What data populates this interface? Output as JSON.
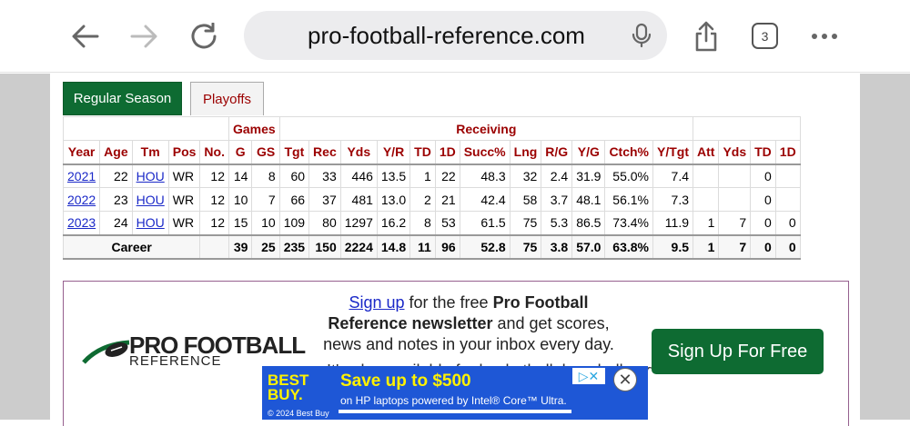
{
  "browser": {
    "url": "pro-football-reference.com",
    "tab_count": "3"
  },
  "tabs": {
    "regular": "Regular Season",
    "playoffs": "Playoffs"
  },
  "table": {
    "group_games": "Games",
    "group_receiving": "Receiving",
    "headers": [
      "Year",
      "Age",
      "Tm",
      "Pos",
      "No.",
      "G",
      "GS",
      "Tgt",
      "Rec",
      "Yds",
      "Y/R",
      "TD",
      "1D",
      "Succ%",
      "Lng",
      "R/G",
      "Y/G",
      "Ctch%",
      "Y/Tgt",
      "Att",
      "Yds",
      "TD",
      "1D"
    ],
    "rows": [
      [
        "2021",
        "22",
        "HOU",
        "WR",
        "12",
        "14",
        "8",
        "60",
        "33",
        "446",
        "13.5",
        "1",
        "22",
        "48.3",
        "32",
        "2.4",
        "31.9",
        "55.0%",
        "7.4",
        "",
        "",
        "0",
        ""
      ],
      [
        "2022",
        "23",
        "HOU",
        "WR",
        "12",
        "10",
        "7",
        "66",
        "37",
        "481",
        "13.0",
        "2",
        "21",
        "42.4",
        "58",
        "3.7",
        "48.1",
        "56.1%",
        "7.3",
        "",
        "",
        "0",
        ""
      ],
      [
        "2023",
        "24",
        "HOU",
        "WR",
        "12",
        "15",
        "10",
        "109",
        "80",
        "1297",
        "16.2",
        "8",
        "53",
        "61.5",
        "75",
        "5.3",
        "86.5",
        "73.4%",
        "11.9",
        "1",
        "7",
        "0",
        "0"
      ]
    ],
    "career": {
      "label": "Career",
      "values": [
        "39",
        "25",
        "235",
        "150",
        "2224",
        "14.8",
        "11",
        "96",
        "52.8",
        "75",
        "3.8",
        "57.0",
        "63.8%",
        "9.5",
        "1",
        "7",
        "0",
        "0"
      ]
    }
  },
  "promo": {
    "signup_link": "Sign up",
    "text_1": " for the free ",
    "brand": "Pro Football Reference newsletter",
    "text_2": " and get scores, news and notes in your inbox every day.",
    "cut_text": "It's also available for basketball, baseball and",
    "button": "Sign Up For Free",
    "logo_main": "PRO FOOTBALL",
    "logo_sub": "REFERENCE"
  },
  "ad": {
    "brand_line1": "BEST",
    "brand_line2": "BUY.",
    "headline": "Save up to $500",
    "sub": "on HP laptops powered by Intel® Core™ Ultra.",
    "copyright": "© 2024 Best Buy"
  }
}
